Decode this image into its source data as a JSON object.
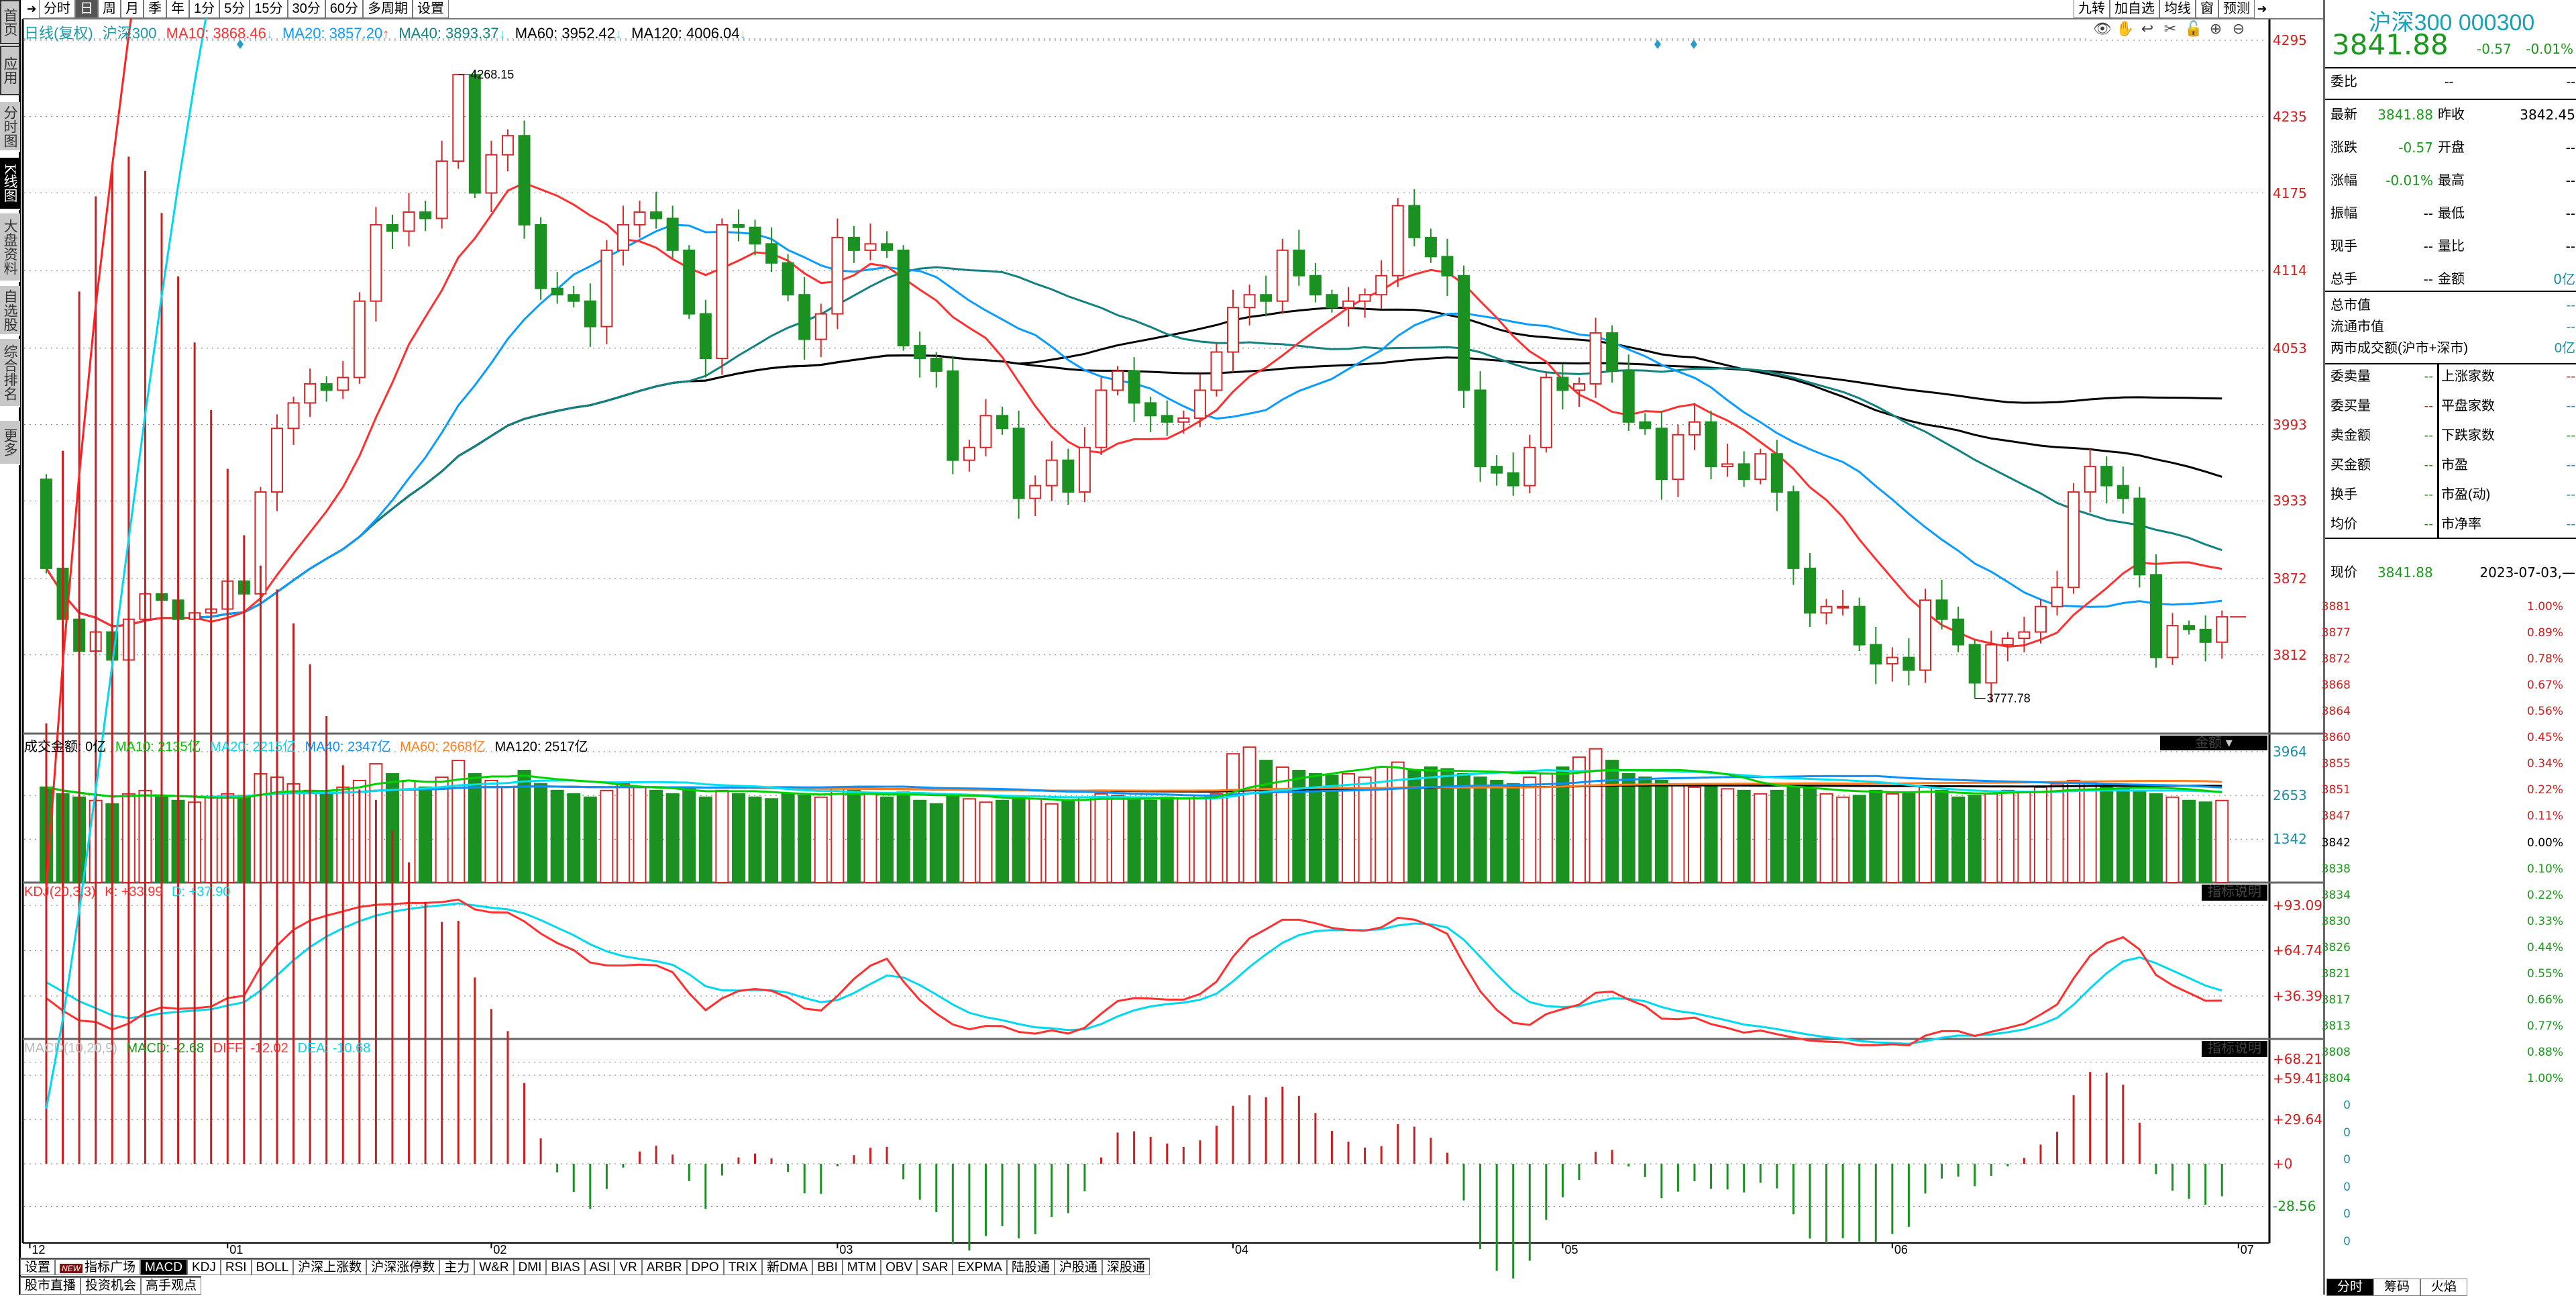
{
  "sidebar": {
    "items": [
      {
        "label": "首页"
      },
      {
        "label": "应用"
      },
      {
        "label": "分时图"
      },
      {
        "label": "K线图"
      },
      {
        "label": "大盘资料"
      },
      {
        "label": "自选股"
      },
      {
        "label": "综合排名"
      },
      {
        "label": "更多"
      }
    ]
  },
  "toolbar": {
    "periods": [
      "分时",
      "日",
      "周",
      "月",
      "季",
      "年",
      "1分",
      "5分",
      "15分",
      "30分",
      "60分",
      "多周期",
      "设置"
    ],
    "selected": "日",
    "right_buttons": [
      "九转",
      "加自选",
      "均线",
      "窗",
      "预测"
    ]
  },
  "chart_tools": [
    "eye-icon",
    "hand-icon",
    "undo-icon",
    "scissors-icon",
    "lock-icon",
    "zoom-in-icon",
    "zoom-out-icon"
  ],
  "ma_header": {
    "type": "日线(复权)",
    "name": "沪深300",
    "ma10": "MA10: 3868.46",
    "ma10_dir": "↓",
    "ma20": "MA20: 3857.20",
    "ma20_dir": "↑",
    "ma40": "MA40: 3893.37",
    "ma40_dir": "↓",
    "ma60": "MA60: 3952.42",
    "ma60_dir": "↓",
    "ma120": "MA120: 4006.04",
    "ma120_dir": "↓"
  },
  "colors": {
    "up": "#d62828",
    "down": "#1a9120",
    "ma10": "#ff3030",
    "ma20": "#0a9cff",
    "ma40": "#12817f",
    "ma60": "#000000",
    "ma120": "#000000",
    "vma10": "#00d000",
    "vma20": "#00e0f0",
    "vma40": "#0a90ff",
    "vma60": "#ff7f20",
    "vma120": "#000000",
    "k": "#ff3030",
    "d": "#00d8f0"
  },
  "chart_data": {
    "type": "candlestick",
    "title": "沪深300 日线(复权)",
    "first_open": 3950,
    "closes": [
      3880,
      3840,
      3815,
      3830,
      3808,
      3840,
      3860,
      3855,
      3840,
      3845,
      3848,
      3870,
      3860,
      3940,
      3990,
      4010,
      4025,
      4020,
      4030,
      4090,
      4150,
      4145,
      4160,
      4155,
      4200,
      4268,
      4175,
      4205,
      4220,
      4150,
      4100,
      4095,
      4090,
      4070,
      4130,
      4150,
      4160,
      4155,
      4130,
      4080,
      4045,
      4150,
      4148,
      4135,
      4120,
      4095,
      4060,
      4080,
      4140,
      4130,
      4135,
      4130,
      4055,
      4045,
      4035,
      3965,
      3975,
      4000,
      3990,
      3935,
      3945,
      3965,
      3940,
      3975,
      4020,
      4035,
      4010,
      4000,
      3995,
      3998,
      4020,
      4050,
      4085,
      4095,
      4090,
      4130,
      4110,
      4095,
      4085,
      4090,
      4095,
      4110,
      4165,
      4140,
      4125,
      4110,
      4020,
      3960,
      3955,
      3945,
      3975,
      4030,
      4020,
      4025,
      4065,
      4035,
      3995,
      3990,
      3950,
      3985,
      3995,
      3960,
      3962,
      3950,
      3970,
      3940,
      3880,
      3845,
      3850,
      3850,
      3820,
      3805,
      3810,
      3800,
      3855,
      3840,
      3820,
      3790,
      3820,
      3825,
      3830,
      3850,
      3865,
      3940,
      3960,
      3945,
      3935,
      3875,
      3810,
      3835,
      3832,
      3822,
      3841.88
    ],
    "volumes": [
      2900,
      2700,
      2600,
      2500,
      2400,
      2700,
      2800,
      2600,
      2500,
      2450,
      2600,
      2700,
      2650,
      3300,
      3200,
      3000,
      2800,
      2700,
      2900,
      3100,
      3600,
      3300,
      3100,
      2900,
      3200,
      3700,
      3300,
      3100,
      2900,
      3400,
      3000,
      2800,
      2700,
      2600,
      2800,
      3000,
      2900,
      2800,
      2700,
      2900,
      2600,
      2800,
      2700,
      2600,
      2550,
      2700,
      2650,
      2600,
      2900,
      2800,
      2700,
      2600,
      2750,
      2500,
      2400,
      2650,
      2550,
      2450,
      2500,
      2600,
      2550,
      2400,
      2500,
      2600,
      2700,
      2650,
      2550,
      2500,
      2600,
      2550,
      2650,
      2700,
      3900,
      4100,
      3700,
      3500,
      3400,
      3300,
      3250,
      3300,
      3200,
      3500,
      3650,
      3400,
      3500,
      3450,
      3300,
      3200,
      3100,
      3000,
      3200,
      3300,
      3500,
      3800,
      4050,
      3700,
      3300,
      3200,
      3100,
      3000,
      2900,
      2950,
      2850,
      2800,
      2700,
      2800,
      2900,
      2850,
      2700,
      2600,
      2650,
      2800,
      2700,
      2750,
      2900,
      2800,
      2600,
      2650,
      2700,
      2800,
      2750,
      2900,
      3000,
      3100,
      3050,
      2900,
      2850,
      2800,
      2700,
      2600,
      2500,
      2450,
      2500
    ],
    "high_annotation": {
      "index": 25,
      "value": "4268.15"
    },
    "low_annotation": {
      "index": 117,
      "value": "3777.78"
    },
    "price_ticks": [
      "4295",
      "4235",
      "4175",
      "4114",
      "4053",
      "3993",
      "3933",
      "3872",
      "3812"
    ],
    "price_range": [
      3812,
      4295
    ],
    "x_labels": [
      {
        "label": "12",
        "index": -1
      },
      {
        "label": "01",
        "index": 11
      },
      {
        "label": "02",
        "index": 27
      },
      {
        "label": "03",
        "index": 48
      },
      {
        "label": "04",
        "index": 72
      },
      {
        "label": "05",
        "index": 92
      },
      {
        "label": "06",
        "index": 112
      },
      {
        "label": "07",
        "index": 133
      }
    ],
    "volume_ticks": [
      "3964",
      "2653",
      "1342"
    ],
    "kdj_ticks": [
      "+93.09",
      "+64.74",
      "+36.39"
    ],
    "macd_ticks": [
      "+68.21",
      "+59.41",
      "+29.64",
      "+0",
      "-28.56"
    ]
  },
  "volume_header": {
    "label": "成交金额: 0亿",
    "ma10": "MA10: 2135亿",
    "ma20": "MA20: 2215亿",
    "ma40": "MA40: 2347亿",
    "ma60": "MA60: 2668亿",
    "ma120": "MA120: 2517亿",
    "dir": "↓",
    "box": "金额"
  },
  "kdj_header": {
    "name": "KDJ(20,3,3)",
    "k": "K: +33.99",
    "d": "D: +37.90",
    "dir": "↓",
    "box": "指标说明"
  },
  "macd_header": {
    "name": "MACD(10,20,9)",
    "macd": "MACD: -2.68",
    "diff": "DIFF: -12.02",
    "dea": "DEA: -10.68",
    "up": "↑",
    "down": "↓",
    "box": "指标说明"
  },
  "bottom_tabs": {
    "row1": [
      "设置",
      "指标广场",
      "MACD",
      "KDJ",
      "RSI",
      "BOLL",
      "沪深上涨数",
      "沪深涨停数",
      "主力",
      "W&R",
      "DMI",
      "BIAS",
      "ASI",
      "VR",
      "ARBR",
      "DPO",
      "TRIX",
      "新DMA",
      "BBI",
      "MTM",
      "OBV",
      "SAR",
      "EXPMA",
      "陆股通",
      "沪股通",
      "深股通"
    ],
    "new_badge": "NEW",
    "selected": "MACD",
    "row2": [
      "股市直播",
      "投资机会",
      "高手观点"
    ]
  },
  "quote": {
    "title": "沪深300 000300",
    "price": "3841.88",
    "change": "-0.57",
    "change_pct": "-0.01%",
    "weibi_label": "委比",
    "weibi_1": "--",
    "weibi_2": "--",
    "rows": [
      {
        "l1": "最新",
        "v1": "3841.88",
        "l2": "昨收",
        "v2": "3842.45"
      },
      {
        "l1": "涨跌",
        "v1": "-0.57",
        "l2": "开盘",
        "v2": "--"
      },
      {
        "l1": "涨幅",
        "v1": "-0.01%",
        "l2": "最高",
        "v2": "--"
      },
      {
        "l1": "振幅",
        "v1": "--",
        "l2": "最低",
        "v2": "--"
      },
      {
        "l1": "现手",
        "v1": "--",
        "l2": "量比",
        "v2": "--"
      },
      {
        "l1": "总手",
        "v1": "--",
        "l2": "金额",
        "v2": "0亿"
      }
    ],
    "mkt": [
      {
        "l": "总市值",
        "v": "--"
      },
      {
        "l": "流通市值",
        "v": "--"
      },
      {
        "l": "两市成交额(沪市+深市)",
        "v": "0亿"
      }
    ],
    "book": [
      {
        "l1": "委卖量",
        "v1": "--",
        "l2": "上涨家数",
        "v2": "--"
      },
      {
        "l1": "委买量",
        "v1": "--",
        "l2": "平盘家数",
        "v2": "--"
      },
      {
        "l1": "卖金额",
        "v1": "--",
        "l2": "下跌家数",
        "v2": "--"
      },
      {
        "l1": "买金额",
        "v1": "--",
        "l2": "市盈",
        "v2": "--"
      },
      {
        "l1": "换手",
        "v1": "--",
        "l2": "市盈(动)",
        "v2": "--"
      },
      {
        "l1": "均价",
        "v1": "--",
        "l2": "市净率",
        "v2": "--"
      }
    ]
  },
  "intraday": {
    "label": "现价",
    "price": "3841.88",
    "date": "2023-07-03,—",
    "left": [
      "3881",
      "3877",
      "3872",
      "3868",
      "3864",
      "3860",
      "3855",
      "3851",
      "3847",
      "3842",
      "3838",
      "3834",
      "3830",
      "3826",
      "3821",
      "3817",
      "3813",
      "3808",
      "3804"
    ],
    "right": [
      "1.00%",
      "0.89%",
      "0.78%",
      "0.67%",
      "0.56%",
      "0.45%",
      "0.34%",
      "0.22%",
      "0.11%",
      "0.00%",
      "0.10%",
      "0.22%",
      "0.33%",
      "0.44%",
      "0.55%",
      "0.66%",
      "0.77%",
      "0.88%",
      "1.00%"
    ],
    "vol": [
      "0",
      "0",
      "0",
      "0",
      "0",
      "0"
    ],
    "tabs": [
      "分时",
      "筹码",
      "火焰"
    ]
  }
}
